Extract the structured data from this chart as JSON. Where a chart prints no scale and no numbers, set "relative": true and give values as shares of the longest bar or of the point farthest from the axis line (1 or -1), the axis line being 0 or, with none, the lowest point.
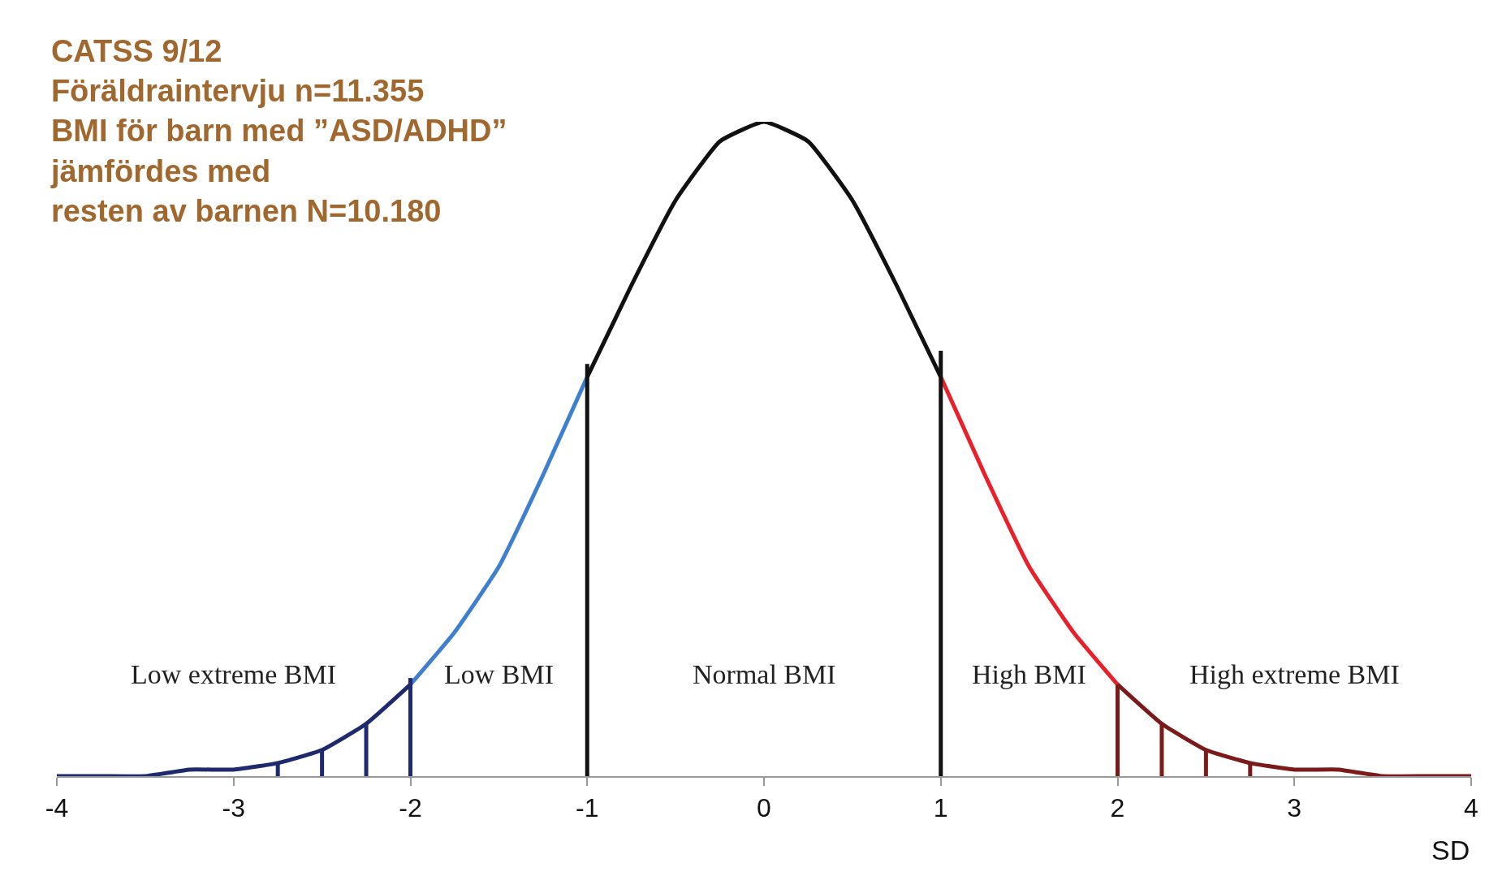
{
  "chart_data": {
    "type": "line",
    "relative": true,
    "title": "CATSS 9/12\nFöräldraintervju n=11.355\nBMI för barn med ”ASD/ADHD”\njämfördes med\nresten av barnen N=10.180",
    "xlabel": "SD",
    "xlim": [
      -4,
      4
    ],
    "xticks": [
      -4,
      -3,
      -2,
      -1,
      0,
      1,
      2,
      3,
      4
    ],
    "grid": false,
    "marker": "none",
    "line_style": "solid",
    "series": [
      {
        "color": "#1f2a6e",
        "x": [
          -4,
          -3.75,
          -3.5,
          -3.25,
          -3,
          -2.75,
          -2.5,
          -2.25,
          -2
        ],
        "values": [
          0,
          0,
          0,
          0.01,
          0.01,
          0.02,
          0.04,
          0.08,
          0.14
        ]
      },
      {
        "color": "#3f7fd0",
        "x": [
          -2,
          -1.75,
          -1.5,
          -1.25,
          -1
        ],
        "values": [
          0.14,
          0.22,
          0.32,
          0.46,
          0.61
        ]
      },
      {
        "color": "#111111",
        "x": [
          -1,
          -0.75,
          -0.5,
          -0.25,
          0,
          0.25,
          0.5,
          0.75,
          1
        ],
        "values": [
          0.61,
          0.75,
          0.88,
          0.97,
          1,
          0.97,
          0.88,
          0.75,
          0.61
        ]
      },
      {
        "color": "#e8202a",
        "x": [
          1,
          1.25,
          1.5,
          1.75,
          2
        ],
        "values": [
          0.61,
          0.46,
          0.32,
          0.22,
          0.14
        ]
      },
      {
        "color": "#7a1a1a",
        "x": [
          2,
          2.25,
          2.5,
          2.75,
          3,
          3.25,
          3.5,
          3.75,
          4
        ],
        "values": [
          0.14,
          0.08,
          0.04,
          0.02,
          0.01,
          0.01,
          0,
          0,
          0
        ]
      },
      {
        "color": "#1f2a6e",
        "x": [
          -2.75,
          -2.75
        ],
        "values": [
          0,
          0.02
        ]
      },
      {
        "color": "#1f2a6e",
        "x": [
          -2.5,
          -2.5
        ],
        "values": [
          0,
          0.04
        ]
      },
      {
        "color": "#1f2a6e",
        "x": [
          -2.25,
          -2.25
        ],
        "values": [
          0,
          0.08
        ]
      },
      {
        "color": "#1f2a6e",
        "x": [
          -2,
          -2
        ],
        "values": [
          0,
          0.15
        ]
      },
      {
        "color": "#111111",
        "x": [
          -1,
          -1
        ],
        "values": [
          0,
          0.63
        ]
      },
      {
        "color": "#111111",
        "x": [
          1,
          1
        ],
        "values": [
          0,
          0.65
        ]
      },
      {
        "color": "#7a1a1a",
        "x": [
          2,
          2
        ],
        "values": [
          0,
          0.14
        ]
      },
      {
        "color": "#7a1a1a",
        "x": [
          2.25,
          2.25
        ],
        "values": [
          0,
          0.08
        ]
      },
      {
        "color": "#7a1a1a",
        "x": [
          2.5,
          2.5
        ],
        "values": [
          0,
          0.04
        ]
      },
      {
        "color": "#7a1a1a",
        "x": [
          2.75,
          2.75
        ],
        "values": [
          0,
          0.02
        ]
      }
    ],
    "annotations": [
      "Low extreme BMI",
      "Low BMI",
      "Normal BMI",
      "High BMI",
      "High extreme BMI"
    ]
  }
}
